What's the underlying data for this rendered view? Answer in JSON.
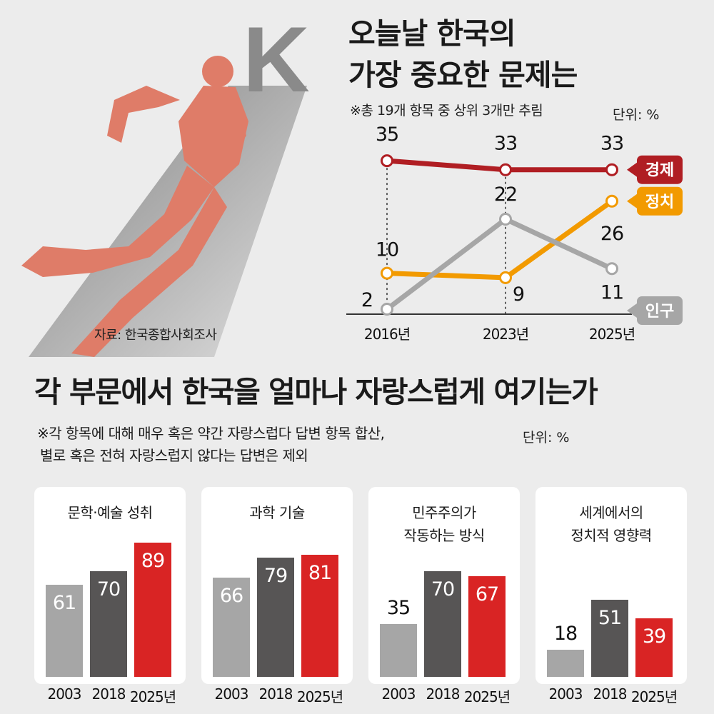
{
  "header": {
    "title_line1": "오늘날 한국의",
    "title_line2": "가장 중요한 문제는",
    "note": "※총 19개 항목 중 상위 3개만 추림",
    "unit": "단위: %",
    "illustration_letter": "K",
    "source": "자료: 한국종합사회조사"
  },
  "section2": {
    "title": "각 부문에서 한국을 얼마나 자랑스럽게 여기는가",
    "note_line1": "※각 항목에 대해 매우 혹은 약간 자랑스럽다 답변 항목 합산,",
    "note_line2": "별로 혹은 전혀 자랑스럽지 않다는 답변은 제외",
    "unit": "단위: %"
  },
  "colors": {
    "economy": "#b01e23",
    "politics": "#f29a00",
    "population": "#a6a6a6",
    "bar_2003": "#a6a6a6",
    "bar_2018": "#575555",
    "bar_2025": "#d92424"
  },
  "chart_data": [
    {
      "type": "line",
      "x": [
        "2016년",
        "2023년",
        "2025년"
      ],
      "series": [
        {
          "name": "경제",
          "values": [
            35,
            33,
            33
          ],
          "color": "#b01e23"
        },
        {
          "name": "정치",
          "values": [
            10,
            9,
            26
          ],
          "color": "#f29a00"
        },
        {
          "name": "인구",
          "values": [
            2,
            22,
            11
          ],
          "color": "#a6a6a6"
        }
      ]
    },
    {
      "type": "bar",
      "title": "문학·예술 성취",
      "categories": [
        "2003",
        "2018",
        "2025년"
      ],
      "values": [
        61,
        70,
        89
      ]
    },
    {
      "type": "bar",
      "title": "과학 기술",
      "categories": [
        "2003",
        "2018",
        "2025년"
      ],
      "values": [
        66,
        79,
        81
      ]
    },
    {
      "type": "bar",
      "title": "민주주의가\n작동하는 방식",
      "categories": [
        "2003",
        "2018",
        "2025년"
      ],
      "values": [
        35,
        70,
        67
      ]
    },
    {
      "type": "bar",
      "title": "세계에서의\n정치적 영향력",
      "categories": [
        "2003",
        "2018",
        "2025년"
      ],
      "values": [
        18,
        51,
        39
      ]
    }
  ]
}
